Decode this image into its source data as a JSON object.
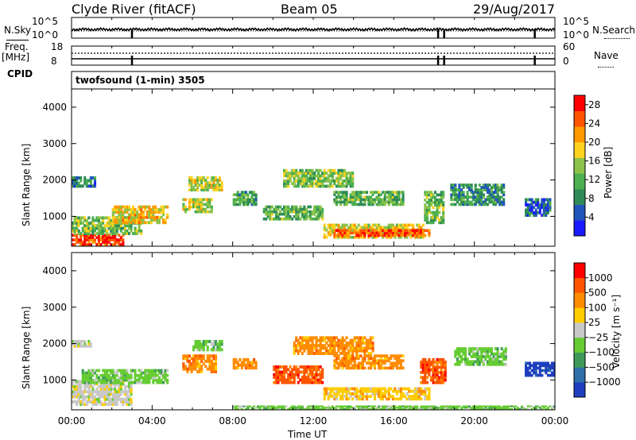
{
  "header": {
    "title": "Clyde River (fitACF)",
    "beam": "Beam 05",
    "date": "29/Aug/2017"
  },
  "top_panels": {
    "nsky_label": "N.Sky",
    "nsearch_label": "N.Search",
    "noise_ticks_left": [
      "10^5",
      "10^0"
    ],
    "noise_ticks_right": [
      "10^5",
      "10^0"
    ],
    "freq_label_1": "Freq.",
    "freq_label_2": "[MHz]",
    "freq_ticks": [
      "18",
      "8"
    ],
    "nave_label": "Nave",
    "nave_ticks": [
      "60",
      "0"
    ],
    "cpid_label": "CPID",
    "cpid_value": "twofsound (1-min) 3505"
  },
  "chart_data": [
    {
      "type": "heatmap",
      "name": "power",
      "ylabel": "Slant Range [km]",
      "y_ticks": [
        1000,
        2000,
        3000,
        4000
      ],
      "ylim": [
        180,
        4500
      ],
      "x_ticks": [
        "00:00",
        "04:00",
        "08:00",
        "12:00",
        "16:00",
        "20:00",
        "00:00"
      ],
      "xlim_hours": [
        0,
        24
      ],
      "colorbar": {
        "label": "Power [dB]",
        "ticks": [
          4,
          8,
          12,
          16,
          20,
          24,
          28
        ],
        "range": [
          0,
          30
        ],
        "colors": [
          "#1a1aff",
          "#2255bb",
          "#2e8b57",
          "#4caf50",
          "#8bc34a",
          "#ffd21f",
          "#ff9900",
          "#ff5500",
          "#ff0000"
        ]
      },
      "regions": [
        {
          "t0": 0.0,
          "t1": 2.6,
          "r0": 200,
          "r1": 520,
          "level": 27
        },
        {
          "t0": 0.0,
          "t1": 3.5,
          "r0": 500,
          "r1": 1000,
          "level": 14
        },
        {
          "t0": 2.0,
          "t1": 4.8,
          "r0": 800,
          "r1": 1300,
          "level": 19
        },
        {
          "t0": 0.0,
          "t1": 1.2,
          "r0": 1800,
          "r1": 2100,
          "level": 7
        },
        {
          "t0": 5.5,
          "t1": 7.0,
          "r0": 1100,
          "r1": 1500,
          "level": 16
        },
        {
          "t0": 5.8,
          "t1": 7.5,
          "r0": 1700,
          "r1": 2100,
          "level": 17
        },
        {
          "t0": 8.0,
          "t1": 9.2,
          "r0": 1300,
          "r1": 1700,
          "level": 11
        },
        {
          "t0": 9.5,
          "t1": 12.5,
          "r0": 900,
          "r1": 1300,
          "level": 12
        },
        {
          "t0": 10.5,
          "t1": 14.0,
          "r0": 1800,
          "r1": 2300,
          "level": 14
        },
        {
          "t0": 13.0,
          "t1": 16.5,
          "r0": 1300,
          "r1": 1700,
          "level": 12
        },
        {
          "t0": 12.5,
          "t1": 17.5,
          "r0": 400,
          "r1": 800,
          "level": 18
        },
        {
          "t0": 13.0,
          "t1": 17.8,
          "r0": 450,
          "r1": 650,
          "level": 25
        },
        {
          "t0": 17.5,
          "t1": 18.5,
          "r0": 800,
          "r1": 1700,
          "level": 13
        },
        {
          "t0": 18.8,
          "t1": 21.5,
          "r0": 1300,
          "r1": 1900,
          "level": 9
        },
        {
          "t0": 22.5,
          "t1": 23.8,
          "r0": 1000,
          "r1": 1500,
          "level": 6
        }
      ]
    },
    {
      "type": "heatmap",
      "name": "velocity",
      "ylabel": "Slant Range [km]",
      "y_ticks": [
        1000,
        2000,
        3000,
        4000
      ],
      "ylim": [
        180,
        4500
      ],
      "xlabel": "Time UT",
      "x_ticks": [
        "00:00",
        "04:00",
        "08:00",
        "12:00",
        "16:00",
        "20:00",
        "00:00"
      ],
      "xlim_hours": [
        0,
        24
      ],
      "colorbar": {
        "label": "Velocity [m s⁻¹]",
        "ticks": [
          "1000",
          "500",
          "100",
          "25",
          "−25",
          "−100",
          "−500",
          "−1000"
        ],
        "colors": [
          "#1f3fbf",
          "#2e6fa8",
          "#3f9a5a",
          "#66cc33",
          "#c8c8c8",
          "#ffcc00",
          "#ff8c00",
          "#ff5500",
          "#ff0000"
        ]
      },
      "regions": [
        {
          "t0": 0.0,
          "t1": 3.0,
          "r0": 300,
          "r1": 1000,
          "cls": 4
        },
        {
          "t0": 0.5,
          "t1": 4.8,
          "r0": 900,
          "r1": 1300,
          "cls": 3
        },
        {
          "t0": 0.0,
          "t1": 1.0,
          "r0": 1900,
          "r1": 2100,
          "cls": 4
        },
        {
          "t0": 5.5,
          "t1": 7.2,
          "r0": 1200,
          "r1": 1700,
          "cls": 6
        },
        {
          "t0": 6.0,
          "t1": 7.5,
          "r0": 1800,
          "r1": 2100,
          "cls": 3
        },
        {
          "t0": 8.0,
          "t1": 9.2,
          "r0": 1300,
          "r1": 1600,
          "cls": 6
        },
        {
          "t0": 10.0,
          "t1": 12.5,
          "r0": 900,
          "r1": 1400,
          "cls": 7
        },
        {
          "t0": 11.0,
          "t1": 15.0,
          "r0": 1700,
          "r1": 2200,
          "cls": 6
        },
        {
          "t0": 13.0,
          "t1": 16.5,
          "r0": 1300,
          "r1": 1700,
          "cls": 6
        },
        {
          "t0": 12.5,
          "t1": 17.8,
          "r0": 450,
          "r1": 800,
          "cls": 5
        },
        {
          "t0": 8.0,
          "t1": 24.0,
          "r0": 190,
          "r1": 300,
          "cls": 3
        },
        {
          "t0": 17.3,
          "t1": 18.6,
          "r0": 900,
          "r1": 1600,
          "cls": 7
        },
        {
          "t0": 19.0,
          "t1": 21.6,
          "r0": 1400,
          "r1": 1900,
          "cls": 3
        },
        {
          "t0": 22.5,
          "t1": 24.0,
          "r0": 1100,
          "r1": 1500,
          "cls": 0
        }
      ]
    }
  ]
}
